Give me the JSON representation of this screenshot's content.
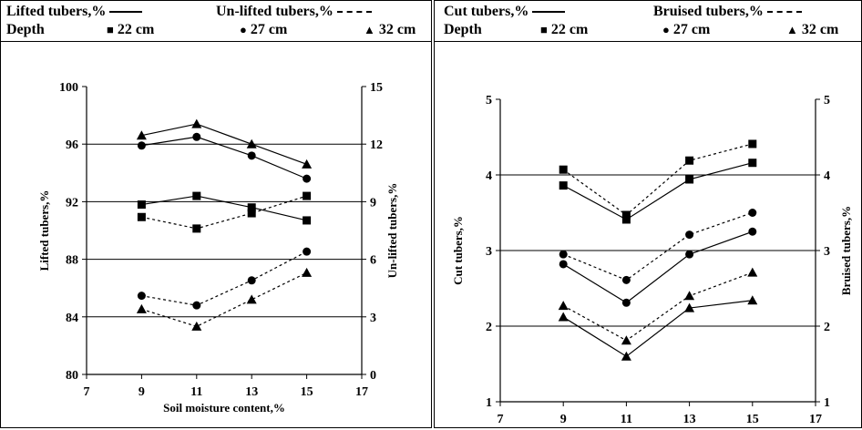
{
  "chart_data": [
    {
      "type": "line",
      "legend": {
        "solid_label": "Lifted tubers,%",
        "dashed_label": "Un-lifted tubers,%",
        "depth_label": "Depth",
        "depths": [
          "22 cm",
          "27 cm",
          "32 cm"
        ],
        "markers": [
          "square",
          "circle",
          "triangle"
        ]
      },
      "xlabel": "Soil moisture content,%",
      "ylabel": "Lifted tubers,%",
      "y2label": "Un-lifted tubers,%",
      "xlim": [
        7,
        17
      ],
      "xticks": [
        7,
        9,
        11,
        13,
        15,
        17
      ],
      "ylim": [
        80,
        100
      ],
      "yticks": [
        80,
        84,
        88,
        92,
        96,
        100
      ],
      "y2lim": [
        0,
        15
      ],
      "y2ticks": [
        0,
        3,
        6,
        9,
        12,
        15
      ],
      "grid": "horizontal",
      "x": [
        9,
        11,
        13,
        15
      ],
      "series": [
        {
          "depth": "22 cm",
          "marker": "square",
          "style": "solid",
          "axis": "left",
          "values": [
            91.8,
            92.4,
            91.6,
            90.7
          ]
        },
        {
          "depth": "27 cm",
          "marker": "circle",
          "style": "solid",
          "axis": "left",
          "values": [
            95.9,
            96.5,
            95.2,
            93.6
          ]
        },
        {
          "depth": "32 cm",
          "marker": "triangle",
          "style": "solid",
          "axis": "left",
          "values": [
            96.6,
            97.4,
            96.0,
            94.6
          ]
        },
        {
          "depth": "22 cm",
          "marker": "square",
          "style": "dashed",
          "axis": "right",
          "values": [
            8.2,
            7.6,
            8.4,
            9.3
          ]
        },
        {
          "depth": "27 cm",
          "marker": "circle",
          "style": "dashed",
          "axis": "right",
          "values": [
            4.1,
            3.6,
            4.9,
            6.4
          ]
        },
        {
          "depth": "32 cm",
          "marker": "triangle",
          "style": "dashed",
          "axis": "right",
          "values": [
            3.4,
            2.5,
            3.9,
            5.3
          ]
        }
      ]
    },
    {
      "type": "line",
      "legend": {
        "solid_label": "Cut tubers,%",
        "dashed_label": "Bruised tubers,%",
        "depth_label": "Depth",
        "depths": [
          "22 cm",
          "27 cm",
          "32 cm"
        ],
        "markers": [
          "square",
          "circle",
          "triangle"
        ]
      },
      "xlabel": "Soil moisture content,%",
      "ylabel": "Cut tubers,%",
      "y2label": "Bruised tubers,%",
      "xlim": [
        7,
        17
      ],
      "xticks": [
        7,
        9,
        11,
        13,
        15,
        17
      ],
      "ylim": [
        1,
        5
      ],
      "yticks": [
        1,
        2,
        3,
        4,
        5
      ],
      "y2lim": [
        1,
        5
      ],
      "y2ticks": [
        1,
        2,
        3,
        4,
        5
      ],
      "grid": "horizontal",
      "x": [
        9,
        11,
        13,
        15
      ],
      "series": [
        {
          "depth": "22 cm",
          "marker": "square",
          "style": "solid",
          "axis": "left",
          "values": [
            3.86,
            3.41,
            3.94,
            4.16
          ]
        },
        {
          "depth": "27 cm",
          "marker": "circle",
          "style": "solid",
          "axis": "left",
          "values": [
            2.82,
            2.31,
            2.95,
            3.25
          ]
        },
        {
          "depth": "32 cm",
          "marker": "triangle",
          "style": "solid",
          "axis": "left",
          "values": [
            2.12,
            1.6,
            2.24,
            2.34
          ]
        },
        {
          "depth": "22 cm",
          "marker": "square",
          "style": "dashed",
          "axis": "right",
          "values": [
            4.07,
            3.47,
            4.19,
            4.41
          ]
        },
        {
          "depth": "27 cm",
          "marker": "circle",
          "style": "dashed",
          "axis": "right",
          "values": [
            2.95,
            2.61,
            3.21,
            3.5
          ]
        },
        {
          "depth": "32 cm",
          "marker": "triangle",
          "style": "dashed",
          "axis": "right",
          "values": [
            2.27,
            1.81,
            2.4,
            2.71
          ]
        }
      ]
    }
  ]
}
